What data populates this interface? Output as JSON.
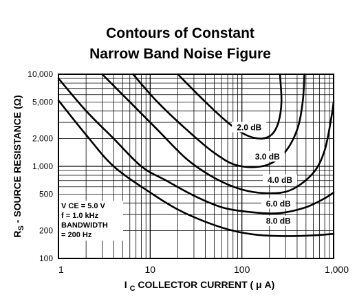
{
  "chart_data": {
    "type": "line",
    "title": [
      "Contours of Constant",
      "Narrow Band Noise Figure"
    ],
    "xlabel": {
      "prefix": "I",
      "sub": "C",
      "rest": " COLLECTOR CURRENT ( μ A)"
    },
    "ylabel": {
      "prefix": "R",
      "sub": "S",
      "rest": " - SOURCE RESISTANCE (Ω)"
    },
    "x_scale": "log",
    "y_scale": "log",
    "xlim": [
      1,
      1000
    ],
    "ylim": [
      100,
      10000
    ],
    "x_ticks": [
      {
        "value": 1,
        "label": "1"
      },
      {
        "value": 10,
        "label": "10"
      },
      {
        "value": 100,
        "label": "100"
      },
      {
        "value": 1000,
        "label": "1,000"
      }
    ],
    "y_ticks": [
      {
        "value": 10000,
        "label": "10,000"
      },
      {
        "value": 5000,
        "label": "5,000"
      },
      {
        "value": 2000,
        "label": "2,000"
      },
      {
        "value": 1000,
        "label": "1,000"
      },
      {
        "value": 500,
        "label": "500"
      },
      {
        "value": 200,
        "label": "200"
      },
      {
        "value": 100,
        "label": "100"
      }
    ],
    "grid": true,
    "conditions": [
      "V CE = 5.0 V",
      "f = 1.0 kHz",
      "BANDWIDTH",
      "= 200 Hz"
    ],
    "series": [
      {
        "name": "2.0 dB",
        "label_at": {
          "x": 120,
          "y": 2600
        },
        "points": [
          [
            20,
            10000
          ],
          [
            40,
            5000
          ],
          [
            70,
            3000
          ],
          [
            110,
            2200
          ],
          [
            160,
            2000
          ],
          [
            210,
            2200
          ],
          [
            250,
            3000
          ],
          [
            270,
            5000
          ],
          [
            260,
            10000
          ]
        ]
      },
      {
        "name": "3.0 dB",
        "label_at": {
          "x": 190,
          "y": 1250
        },
        "points": [
          [
            6.5,
            10000
          ],
          [
            12,
            5000
          ],
          [
            25,
            2500
          ],
          [
            50,
            1400
          ],
          [
            90,
            1020
          ],
          [
            180,
            1020
          ],
          [
            290,
            1400
          ],
          [
            400,
            2500
          ],
          [
            460,
            5000
          ],
          [
            480,
            10000
          ]
        ]
      },
      {
        "name": "4.0 dB",
        "label_at": {
          "x": 260,
          "y": 700
        },
        "points": [
          [
            3,
            10000
          ],
          [
            6,
            5000
          ],
          [
            12,
            2500
          ],
          [
            25,
            1200
          ],
          [
            50,
            750
          ],
          [
            100,
            560
          ],
          [
            200,
            510
          ],
          [
            350,
            560
          ],
          [
            600,
            850
          ],
          [
            800,
            1500
          ],
          [
            950,
            3500
          ],
          [
            1000,
            5000
          ]
        ]
      },
      {
        "name": "6.0 dB",
        "label_at": {
          "x": 250,
          "y": 385
        },
        "points": [
          [
            1,
            9000
          ],
          [
            2,
            4000
          ],
          [
            4,
            2000
          ],
          [
            8,
            1000
          ],
          [
            15,
            700
          ],
          [
            30,
            480
          ],
          [
            60,
            360
          ],
          [
            120,
            320
          ],
          [
            250,
            310
          ],
          [
            500,
            360
          ],
          [
            800,
            450
          ],
          [
            1000,
            520
          ]
        ]
      },
      {
        "name": "8.0 dB",
        "label_at": {
          "x": 250,
          "y": 250
        },
        "points": [
          [
            1,
            5200
          ],
          [
            2,
            2200
          ],
          [
            4,
            1000
          ],
          [
            10,
            520
          ],
          [
            20,
            340
          ],
          [
            40,
            250
          ],
          [
            80,
            200
          ],
          [
            150,
            180
          ],
          [
            300,
            175
          ],
          [
            600,
            178
          ],
          [
            1000,
            185
          ]
        ]
      }
    ]
  }
}
